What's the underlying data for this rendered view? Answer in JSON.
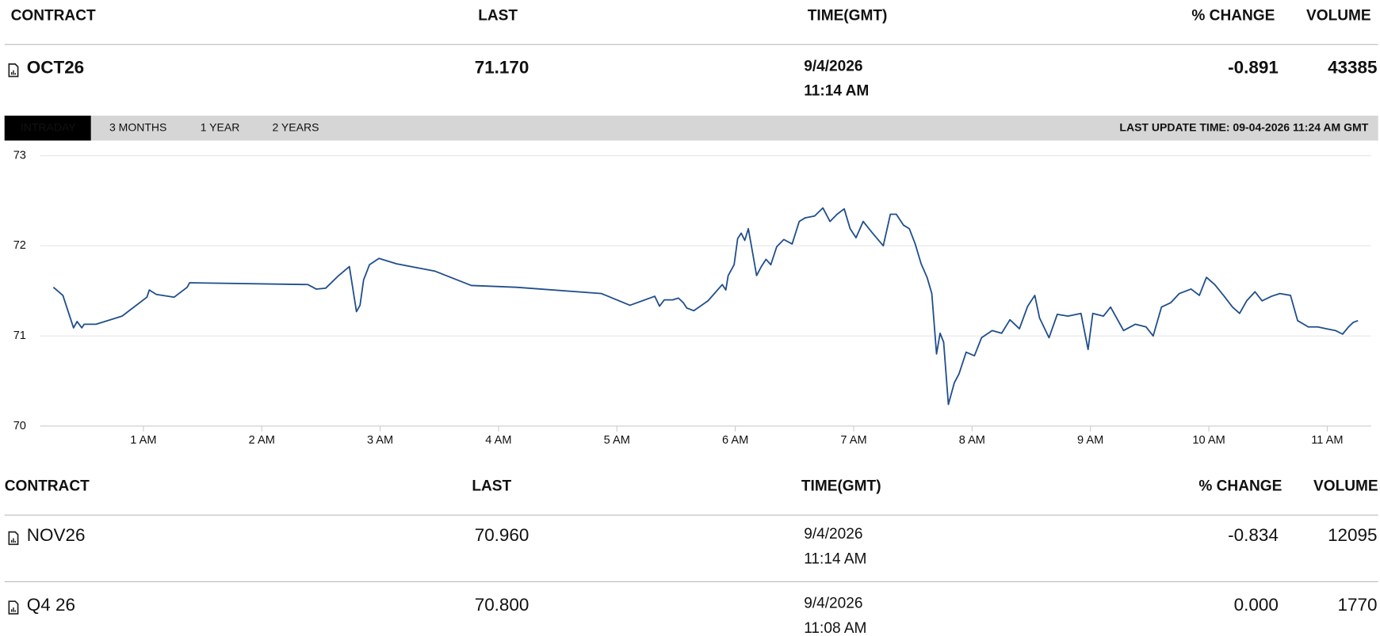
{
  "header_table": {
    "columns": [
      "CONTRACT",
      "LAST",
      "TIME(GMT)",
      "% CHANGE",
      "VOLUME"
    ],
    "rows": [
      {
        "contract": "OCT26",
        "last": "71.170",
        "date": "9/4/2026",
        "time": "11:14 AM",
        "change": "-0.891",
        "volume": "43385"
      }
    ]
  },
  "tabs": [
    "INTRADAY",
    "3 MONTHS",
    "1 YEAR",
    "2 YEARS"
  ],
  "last_update": "LAST UPDATE TIME: 09-04-2026 11:24 AM GMT",
  "chart_data": {
    "type": "line",
    "color": "#1f4e8c",
    "grid": true,
    "xlim": [
      0.128,
      11.37
    ],
    "ylim": [
      70,
      73
    ],
    "yticks": [
      70,
      71,
      72,
      73
    ],
    "xticks": [
      {
        "value": 1,
        "label": "1 AM"
      },
      {
        "value": 2,
        "label": "2 AM"
      },
      {
        "value": 3,
        "label": "3 AM"
      },
      {
        "value": 4,
        "label": "4 AM"
      },
      {
        "value": 5,
        "label": "5 AM"
      },
      {
        "value": 6,
        "label": "6 AM"
      },
      {
        "value": 7,
        "label": "7 AM"
      },
      {
        "value": 8,
        "label": "8 AM"
      },
      {
        "value": 9,
        "label": "9 AM"
      },
      {
        "value": 10,
        "label": "10 AM"
      },
      {
        "value": 11,
        "label": "11 AM"
      }
    ],
    "x": [
      0.24,
      0.32,
      0.41,
      0.44,
      0.48,
      0.5,
      0.6,
      0.82,
      1.03,
      1.05,
      1.11,
      1.26,
      1.37,
      1.39,
      2.39,
      2.46,
      2.54,
      2.65,
      2.74,
      2.8,
      2.83,
      2.86,
      2.91,
      2.99,
      3.14,
      3.46,
      3.77,
      4.15,
      4.87,
      5.11,
      5.32,
      5.36,
      5.4,
      5.47,
      5.52,
      5.56,
      5.59,
      5.65,
      5.77,
      5.89,
      5.92,
      5.94,
      5.99,
      6.02,
      6.05,
      6.08,
      6.11,
      6.14,
      6.18,
      6.22,
      6.26,
      6.3,
      6.35,
      6.41,
      6.48,
      6.54,
      6.59,
      6.67,
      6.74,
      6.8,
      6.86,
      6.92,
      6.97,
      7.02,
      7.08,
      7.16,
      7.25,
      7.31,
      7.36,
      7.42,
      7.47,
      7.52,
      7.57,
      7.62,
      7.66,
      7.7,
      7.73,
      7.76,
      7.8,
      7.85,
      7.89,
      7.95,
      8.02,
      8.08,
      8.17,
      8.25,
      8.32,
      8.4,
      8.47,
      8.53,
      8.57,
      8.65,
      8.72,
      8.81,
      8.92,
      8.98,
      9.02,
      9.11,
      9.17,
      9.28,
      9.38,
      9.47,
      9.53,
      9.6,
      9.68,
      9.75,
      9.85,
      9.92,
      9.98,
      10.05,
      10.13,
      10.2,
      10.26,
      10.32,
      10.39,
      10.45,
      10.53,
      10.6,
      10.69,
      10.75,
      10.84,
      10.92,
      10.99,
      11.07,
      11.13,
      11.18,
      11.22,
      11.26
    ],
    "values": [
      71.54,
      71.45,
      71.09,
      71.16,
      71.09,
      71.13,
      71.13,
      71.22,
      71.43,
      71.51,
      71.46,
      71.43,
      71.54,
      71.59,
      71.57,
      71.52,
      71.53,
      71.67,
      71.77,
      71.27,
      71.34,
      71.62,
      71.79,
      71.86,
      71.8,
      71.72,
      71.56,
      71.54,
      71.47,
      71.34,
      71.44,
      71.33,
      71.4,
      71.4,
      71.42,
      71.37,
      71.31,
      71.28,
      71.39,
      71.57,
      71.51,
      71.67,
      71.79,
      72.08,
      72.14,
      72.06,
      72.19,
      71.97,
      71.67,
      71.77,
      71.85,
      71.79,
      71.99,
      72.07,
      72.02,
      72.27,
      72.31,
      72.33,
      72.42,
      72.27,
      72.35,
      72.41,
      72.19,
      72.09,
      72.27,
      72.14,
      72.0,
      72.35,
      72.35,
      72.23,
      72.19,
      72.02,
      71.8,
      71.65,
      71.47,
      70.8,
      71.03,
      70.93,
      70.24,
      70.48,
      70.58,
      70.82,
      70.78,
      70.98,
      71.06,
      71.03,
      71.18,
      71.08,
      71.33,
      71.45,
      71.2,
      70.98,
      71.24,
      71.22,
      71.25,
      70.85,
      71.25,
      71.22,
      71.32,
      71.06,
      71.13,
      71.1,
      71.0,
      71.32,
      71.37,
      71.47,
      71.52,
      71.45,
      71.65,
      71.57,
      71.44,
      71.32,
      71.25,
      71.39,
      71.49,
      71.39,
      71.44,
      71.47,
      71.45,
      71.17,
      71.1,
      71.1,
      71.08,
      71.06,
      71.02,
      71.1,
      71.15,
      71.17
    ]
  },
  "contracts_table": {
    "columns": [
      "CONTRACT",
      "LAST",
      "TIME(GMT)",
      "% CHANGE",
      "VOLUME"
    ],
    "rows": [
      {
        "contract": "NOV26",
        "last": "70.960",
        "date": "9/4/2026",
        "time": "11:14 AM",
        "change": "-0.834",
        "volume": "12095"
      },
      {
        "contract": "Q4 26",
        "last": "70.800",
        "date": "9/4/2026",
        "time": "11:08 AM",
        "change": "0.000",
        "volume": "1770"
      }
    ]
  }
}
